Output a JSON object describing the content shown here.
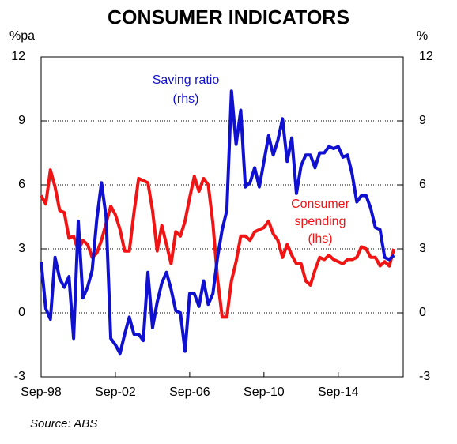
{
  "chart_data": {
    "type": "line",
    "title": "CONSUMER INDICATORS",
    "ylabel": "%pa",
    "y2label": "%",
    "source": "Source: ABS",
    "x": [
      1998.75,
      1999.0,
      1999.25,
      1999.5,
      1999.75,
      2000.0,
      2000.25,
      2000.5,
      2000.75,
      2001.0,
      2001.25,
      2001.5,
      2001.75,
      2002.0,
      2002.25,
      2002.5,
      2002.75,
      2003.0,
      2003.25,
      2003.5,
      2003.75,
      2004.0,
      2004.25,
      2004.5,
      2004.75,
      2005.0,
      2005.25,
      2005.5,
      2005.75,
      2006.0,
      2006.25,
      2006.5,
      2006.75,
      2007.0,
      2007.25,
      2007.5,
      2007.75,
      2008.0,
      2008.25,
      2008.5,
      2008.75,
      2009.0,
      2009.25,
      2009.5,
      2009.75,
      2010.0,
      2010.25,
      2010.5,
      2010.75,
      2011.0,
      2011.25,
      2011.5,
      2011.75,
      2012.0,
      2012.25,
      2012.5,
      2012.75,
      2013.0,
      2013.25,
      2013.5,
      2013.75,
      2014.0,
      2014.25,
      2014.5,
      2014.75,
      2015.0,
      2015.25,
      2015.5,
      2015.75,
      2016.0,
      2016.25,
      2016.5,
      2016.75,
      2017.0,
      2017.25,
      2017.5,
      2017.75
    ],
    "xlim": [
      1998.75,
      2018.25
    ],
    "xticks": [
      {
        "value": 1998.75,
        "label": "Sep-98"
      },
      {
        "value": 2002.75,
        "label": "Sep-02"
      },
      {
        "value": 2006.75,
        "label": "Sep-06"
      },
      {
        "value": 2010.75,
        "label": "Sep-10"
      },
      {
        "value": 2014.75,
        "label": "Sep-14"
      }
    ],
    "ylim": [
      -3,
      12
    ],
    "yticks": [
      -3,
      0,
      3,
      6,
      9,
      12
    ],
    "y2lim": [
      -3,
      12
    ],
    "y2ticks": [
      -3,
      0,
      3,
      6,
      9,
      12
    ],
    "grid": true,
    "series": [
      {
        "name": "Consumer spending (lhs)",
        "color": "#f01414",
        "axis": "y",
        "values": [
          5.5,
          5.1,
          6.7,
          5.9,
          4.8,
          4.7,
          3.5,
          3.6,
          2.9,
          3.4,
          3.2,
          2.6,
          2.8,
          3.4,
          4.2,
          5.0,
          4.6,
          3.9,
          2.9,
          2.9,
          4.7,
          6.3,
          6.2,
          6.1,
          4.8,
          2.9,
          4.1,
          3.2,
          2.3,
          3.8,
          3.6,
          4.3,
          5.4,
          6.4,
          5.7,
          6.3,
          6.0,
          4.2,
          1.6,
          -0.2,
          -0.2,
          1.5,
          2.4,
          3.6,
          3.6,
          3.4,
          3.8,
          3.9,
          4.0,
          4.3,
          3.7,
          3.4,
          2.6,
          3.2,
          2.7,
          2.3,
          2.3,
          1.5,
          1.3,
          2.0,
          2.6,
          2.5,
          2.7,
          2.5,
          2.4,
          2.3,
          2.5,
          2.5,
          2.6,
          3.1,
          3.0,
          2.6,
          2.6,
          2.2,
          2.4,
          2.2,
          3.0
        ]
      },
      {
        "name": "Saving ratio (rhs)",
        "color": "#1010d0",
        "axis": "y2",
        "values": [
          2.4,
          0.2,
          -0.3,
          2.6,
          1.6,
          1.2,
          1.7,
          -1.2,
          4.3,
          0.7,
          1.2,
          2.0,
          4.4,
          6.1,
          4.5,
          -1.2,
          -1.5,
          -1.9,
          -1.0,
          -0.2,
          -1.0,
          -1.0,
          -1.3,
          1.9,
          -0.7,
          0.5,
          1.4,
          1.9,
          1.1,
          0.1,
          0.0,
          -1.8,
          0.9,
          0.9,
          0.3,
          1.5,
          0.4,
          0.9,
          2.6,
          3.9,
          4.8,
          10.4,
          7.9,
          9.5,
          5.9,
          6.1,
          6.8,
          5.9,
          7.1,
          8.3,
          7.4,
          8.1,
          9.1,
          7.1,
          8.2,
          5.6,
          6.9,
          7.4,
          7.4,
          6.8,
          7.5,
          7.5,
          7.8,
          7.7,
          7.8,
          7.3,
          7.4,
          6.5,
          5.2,
          5.5,
          5.5,
          4.9,
          4.0,
          3.9,
          2.6,
          2.5,
          2.7
        ]
      }
    ],
    "annotations": [
      {
        "lines": [
          "Saving ratio",
          "(rhs)"
        ]
      },
      {
        "lines": [
          "Consumer",
          "spending",
          "(lhs)"
        ]
      }
    ]
  }
}
